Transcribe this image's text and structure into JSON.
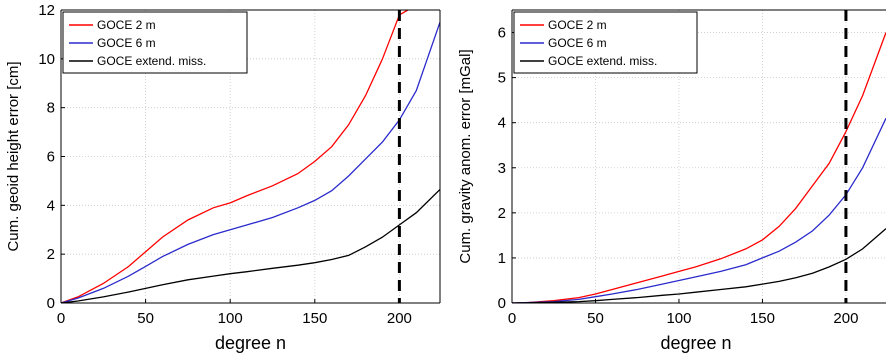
{
  "chart_data": [
    {
      "type": "line",
      "xlabel": "degree n",
      "ylabel": "Cum. geoid height error [cm]",
      "xlim": [
        0,
        224
      ],
      "ylim": [
        0,
        12
      ],
      "xticks": [
        "0",
        "50",
        "100",
        "150",
        "200"
      ],
      "yticks": [
        "0",
        "2",
        "4",
        "6",
        "8",
        "10",
        "12"
      ],
      "grid": true,
      "legend_position": "top-left",
      "vline": 200,
      "series": [
        {
          "name": "GOCE 2 m",
          "color": "#ff0000",
          "x": [
            0,
            10,
            25,
            40,
            50,
            60,
            75,
            90,
            100,
            110,
            125,
            140,
            150,
            160,
            170,
            180,
            190,
            200,
            205
          ],
          "y": [
            0,
            0.25,
            0.8,
            1.5,
            2.1,
            2.7,
            3.4,
            3.9,
            4.1,
            4.4,
            4.8,
            5.3,
            5.8,
            6.4,
            7.3,
            8.5,
            10.0,
            11.8,
            12.0
          ]
        },
        {
          "name": "GOCE 6 m",
          "color": "#2b2bcc",
          "x": [
            0,
            10,
            25,
            40,
            50,
            60,
            75,
            90,
            100,
            110,
            125,
            140,
            150,
            160,
            170,
            180,
            190,
            200,
            210,
            224
          ],
          "y": [
            0,
            0.2,
            0.6,
            1.1,
            1.5,
            1.9,
            2.4,
            2.8,
            3.0,
            3.2,
            3.5,
            3.9,
            4.2,
            4.6,
            5.2,
            5.9,
            6.6,
            7.5,
            8.7,
            11.5
          ]
        },
        {
          "name": "GOCE extend. miss.",
          "color": "#000000",
          "x": [
            0,
            10,
            25,
            40,
            50,
            60,
            75,
            90,
            100,
            110,
            125,
            140,
            150,
            160,
            170,
            180,
            190,
            200,
            210,
            224
          ],
          "y": [
            0,
            0.08,
            0.25,
            0.45,
            0.6,
            0.75,
            0.95,
            1.1,
            1.2,
            1.28,
            1.42,
            1.55,
            1.65,
            1.78,
            1.95,
            2.3,
            2.7,
            3.2,
            3.7,
            4.65
          ]
        }
      ]
    },
    {
      "type": "line",
      "xlabel": "degree n",
      "ylabel": "Cum. gravity anom. error [mGal]",
      "xlim": [
        0,
        224
      ],
      "ylim": [
        0,
        6.5
      ],
      "xticks": [
        "0",
        "50",
        "100",
        "150",
        "200"
      ],
      "yticks": [
        "0",
        "1",
        "2",
        "3",
        "4",
        "5",
        "6"
      ],
      "grid": true,
      "legend_position": "top-left",
      "vline": 200,
      "series": [
        {
          "name": "GOCE 2 m",
          "color": "#ff0000",
          "x": [
            0,
            10,
            25,
            40,
            50,
            60,
            75,
            90,
            100,
            110,
            125,
            140,
            150,
            160,
            170,
            180,
            190,
            200,
            210,
            224
          ],
          "y": [
            0,
            0.01,
            0.05,
            0.12,
            0.2,
            0.3,
            0.45,
            0.6,
            0.7,
            0.8,
            0.98,
            1.2,
            1.4,
            1.7,
            2.1,
            2.6,
            3.1,
            3.8,
            4.6,
            6.0
          ]
        },
        {
          "name": "GOCE 6 m",
          "color": "#2b2bcc",
          "x": [
            0,
            10,
            25,
            40,
            50,
            60,
            75,
            90,
            100,
            110,
            125,
            140,
            150,
            160,
            170,
            180,
            190,
            200,
            210,
            224
          ],
          "y": [
            0,
            0.01,
            0.03,
            0.08,
            0.14,
            0.2,
            0.3,
            0.42,
            0.5,
            0.58,
            0.7,
            0.85,
            1.0,
            1.15,
            1.35,
            1.6,
            1.95,
            2.4,
            3.0,
            4.1
          ]
        },
        {
          "name": "GOCE extend. miss.",
          "color": "#000000",
          "x": [
            0,
            10,
            25,
            40,
            50,
            60,
            75,
            90,
            100,
            110,
            125,
            140,
            150,
            160,
            170,
            180,
            190,
            200,
            210,
            224
          ],
          "y": [
            0,
            0.005,
            0.015,
            0.03,
            0.05,
            0.08,
            0.12,
            0.17,
            0.2,
            0.24,
            0.3,
            0.36,
            0.42,
            0.48,
            0.56,
            0.66,
            0.8,
            0.97,
            1.2,
            1.65
          ]
        }
      ]
    }
  ]
}
